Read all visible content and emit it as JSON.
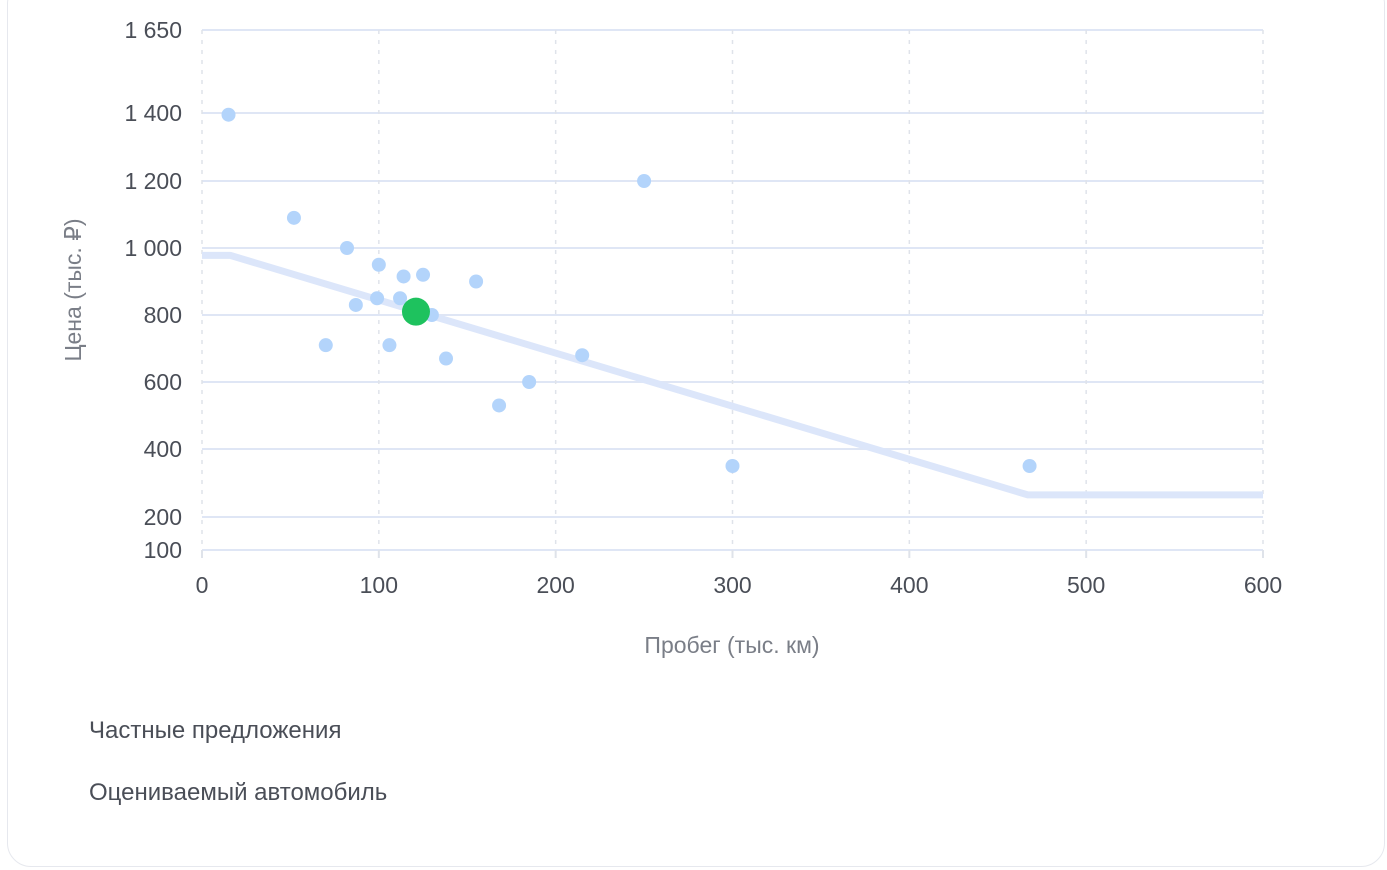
{
  "chart_data": {
    "type": "scatter",
    "xlabel": "Пробег (тыс. км)",
    "ylabel": "Цена (тыс. ₽)",
    "xlim": [
      0,
      600
    ],
    "ylim": [
      100,
      1650
    ],
    "x_ticks": [
      0,
      100,
      200,
      300,
      400,
      500,
      600
    ],
    "y_ticks": [
      100,
      200,
      400,
      600,
      800,
      1000,
      1200,
      1400,
      1650
    ],
    "x_tick_labels": [
      "0",
      "100",
      "200",
      "300",
      "400",
      "500",
      "600"
    ],
    "y_tick_labels": [
      "100",
      "200",
      "400",
      "600",
      "800",
      "1 000",
      "1 200",
      "1 400",
      "1 650"
    ],
    "grid": true,
    "series": [
      {
        "name": "Частные предложения",
        "color": "#b3d4fb",
        "points": [
          {
            "x": 15,
            "y": 1395
          },
          {
            "x": 52,
            "y": 1090
          },
          {
            "x": 70,
            "y": 710
          },
          {
            "x": 82,
            "y": 1000
          },
          {
            "x": 87,
            "y": 830
          },
          {
            "x": 99,
            "y": 850
          },
          {
            "x": 100,
            "y": 950
          },
          {
            "x": 106,
            "y": 710
          },
          {
            "x": 112,
            "y": 850
          },
          {
            "x": 114,
            "y": 915
          },
          {
            "x": 125,
            "y": 920
          },
          {
            "x": 130,
            "y": 800
          },
          {
            "x": 138,
            "y": 670
          },
          {
            "x": 155,
            "y": 900
          },
          {
            "x": 168,
            "y": 530
          },
          {
            "x": 185,
            "y": 600
          },
          {
            "x": 215,
            "y": 680
          },
          {
            "x": 250,
            "y": 1200
          },
          {
            "x": 300,
            "y": 350
          },
          {
            "x": 468,
            "y": 350
          }
        ]
      },
      {
        "name": "Оцениваемый автомобиль",
        "color": "#1ec25e",
        "points": [
          {
            "x": 121,
            "y": 810
          }
        ]
      }
    ],
    "trend_line": {
      "color": "#dce6fa",
      "points": [
        {
          "x": 0,
          "y": 978
        },
        {
          "x": 16,
          "y": 978
        },
        {
          "x": 467,
          "y": 265
        },
        {
          "x": 600,
          "y": 265
        }
      ]
    }
  },
  "legend": {
    "private_label": "Частные предложения",
    "evaluated_label": "Оцениваемый автомобиль"
  }
}
